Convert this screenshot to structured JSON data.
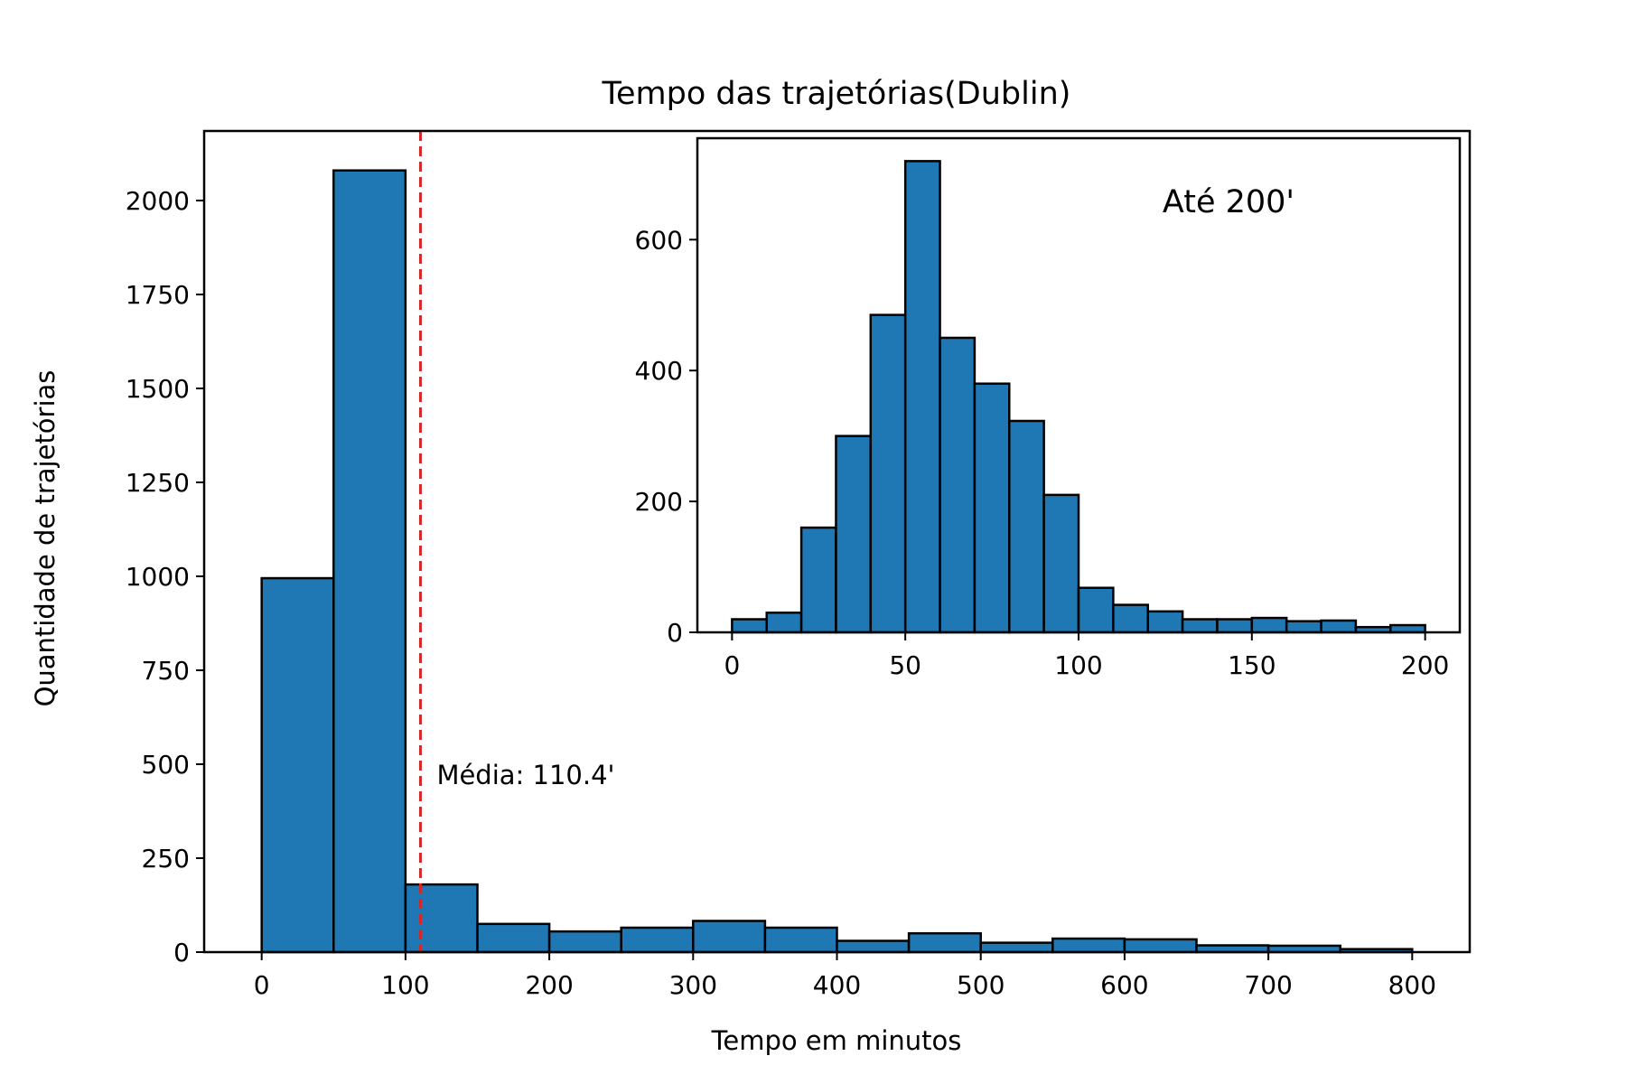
{
  "chart_data": [
    {
      "type": "bar",
      "role": "main-histogram",
      "title": "Tempo das trajetórias(Dublin)",
      "xlabel": "Tempo em minutos",
      "ylabel": "Quantidade de trajetórias",
      "bin_width": 50,
      "bins_start": [
        0,
        50,
        100,
        150,
        200,
        250,
        300,
        350,
        400,
        450,
        500,
        550,
        600,
        650,
        700,
        750
      ],
      "values": [
        995,
        2080,
        180,
        75,
        55,
        65,
        83,
        65,
        30,
        50,
        25,
        36,
        34,
        18,
        17,
        8
      ],
      "xlim": [
        -40,
        840
      ],
      "ylim": [
        0,
        2185
      ],
      "xticks": [
        "0",
        "100",
        "200",
        "300",
        "400",
        "500",
        "600",
        "700",
        "800"
      ],
      "yticks": [
        "0",
        "250",
        "500",
        "750",
        "1000",
        "1250",
        "1500",
        "1750",
        "2000"
      ],
      "mean_line": {
        "x": 110.4,
        "label": "Média: 110.4'",
        "color": "#d62728"
      },
      "bar_color": "#1f77b4",
      "edge_color": "#000000"
    },
    {
      "type": "bar",
      "role": "inset-histogram",
      "annotation": "Até 200'",
      "bin_width": 10,
      "bins_start": [
        0,
        10,
        20,
        30,
        40,
        50,
        60,
        70,
        80,
        90,
        100,
        110,
        120,
        130,
        140,
        150,
        160,
        170,
        180,
        190
      ],
      "values": [
        20,
        30,
        160,
        300,
        485,
        720,
        450,
        380,
        323,
        210,
        68,
        42,
        32,
        20,
        20,
        22,
        17,
        18,
        8,
        11
      ],
      "xlim": [
        -10,
        210
      ],
      "ylim": [
        0,
        755
      ],
      "xticks": [
        "0",
        "50",
        "100",
        "150",
        "200"
      ],
      "yticks": [
        "0",
        "200",
        "400",
        "600"
      ],
      "bar_color": "#1f77b4",
      "edge_color": "#000000"
    }
  ]
}
